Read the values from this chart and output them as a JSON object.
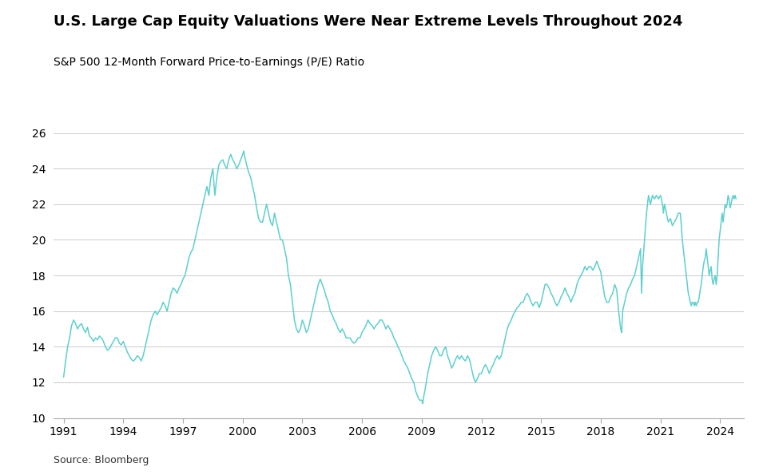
{
  "title": "U.S. Large Cap Equity Valuations Were Near Extreme Levels Throughout 2024",
  "subtitle": "S&P 500 12-Month Forward Price-to-Earnings (P/E) Ratio",
  "source": "Source: Bloomberg",
  "line_color": "#5ECFCF",
  "background_color": "#ffffff",
  "ylim": [
    10,
    26
  ],
  "yticks": [
    10,
    12,
    14,
    16,
    18,
    20,
    22,
    24,
    26
  ],
  "xtick_years": [
    1991,
    1994,
    1997,
    2000,
    2003,
    2006,
    2009,
    2012,
    2015,
    2018,
    2021,
    2024
  ],
  "data": [
    [
      1991.0,
      12.3
    ],
    [
      1991.1,
      13.2
    ],
    [
      1991.2,
      14.0
    ],
    [
      1991.3,
      14.5
    ],
    [
      1991.4,
      15.2
    ],
    [
      1991.5,
      15.5
    ],
    [
      1991.6,
      15.3
    ],
    [
      1991.7,
      15.0
    ],
    [
      1991.8,
      15.2
    ],
    [
      1991.9,
      15.3
    ],
    [
      1992.0,
      15.0
    ],
    [
      1992.1,
      14.8
    ],
    [
      1992.2,
      15.1
    ],
    [
      1992.3,
      14.6
    ],
    [
      1992.4,
      14.5
    ],
    [
      1992.5,
      14.3
    ],
    [
      1992.6,
      14.5
    ],
    [
      1992.7,
      14.4
    ],
    [
      1992.8,
      14.6
    ],
    [
      1992.9,
      14.5
    ],
    [
      1993.0,
      14.3
    ],
    [
      1993.1,
      14.0
    ],
    [
      1993.2,
      13.8
    ],
    [
      1993.3,
      13.9
    ],
    [
      1993.4,
      14.1
    ],
    [
      1993.5,
      14.3
    ],
    [
      1993.6,
      14.5
    ],
    [
      1993.7,
      14.5
    ],
    [
      1993.8,
      14.2
    ],
    [
      1993.9,
      14.1
    ],
    [
      1994.0,
      14.3
    ],
    [
      1994.1,
      14.0
    ],
    [
      1994.2,
      13.7
    ],
    [
      1994.3,
      13.5
    ],
    [
      1994.4,
      13.3
    ],
    [
      1994.5,
      13.2
    ],
    [
      1994.6,
      13.3
    ],
    [
      1994.7,
      13.5
    ],
    [
      1994.8,
      13.4
    ],
    [
      1994.9,
      13.2
    ],
    [
      1995.0,
      13.5
    ],
    [
      1995.1,
      14.0
    ],
    [
      1995.2,
      14.5
    ],
    [
      1995.3,
      15.0
    ],
    [
      1995.4,
      15.5
    ],
    [
      1995.5,
      15.8
    ],
    [
      1995.6,
      16.0
    ],
    [
      1995.7,
      15.8
    ],
    [
      1995.8,
      16.0
    ],
    [
      1995.9,
      16.2
    ],
    [
      1996.0,
      16.5
    ],
    [
      1996.1,
      16.3
    ],
    [
      1996.2,
      16.0
    ],
    [
      1996.3,
      16.5
    ],
    [
      1996.4,
      17.0
    ],
    [
      1996.5,
      17.3
    ],
    [
      1996.6,
      17.2
    ],
    [
      1996.7,
      17.0
    ],
    [
      1996.8,
      17.3
    ],
    [
      1996.9,
      17.5
    ],
    [
      1997.0,
      17.8
    ],
    [
      1997.1,
      18.0
    ],
    [
      1997.2,
      18.5
    ],
    [
      1997.3,
      19.0
    ],
    [
      1997.4,
      19.3
    ],
    [
      1997.5,
      19.5
    ],
    [
      1997.6,
      20.0
    ],
    [
      1997.7,
      20.5
    ],
    [
      1997.8,
      21.0
    ],
    [
      1997.9,
      21.5
    ],
    [
      1998.0,
      22.0
    ],
    [
      1998.1,
      22.5
    ],
    [
      1998.2,
      23.0
    ],
    [
      1998.3,
      22.5
    ],
    [
      1998.4,
      23.5
    ],
    [
      1998.5,
      24.0
    ],
    [
      1998.6,
      22.5
    ],
    [
      1998.7,
      23.5
    ],
    [
      1998.8,
      24.2
    ],
    [
      1998.9,
      24.4
    ],
    [
      1999.0,
      24.5
    ],
    [
      1999.1,
      24.2
    ],
    [
      1999.2,
      24.0
    ],
    [
      1999.3,
      24.5
    ],
    [
      1999.4,
      24.8
    ],
    [
      1999.5,
      24.5
    ],
    [
      1999.6,
      24.3
    ],
    [
      1999.7,
      24.0
    ],
    [
      1999.8,
      24.2
    ],
    [
      1999.9,
      24.5
    ],
    [
      2000.0,
      24.8
    ],
    [
      2000.05,
      25.0
    ],
    [
      2000.1,
      24.7
    ],
    [
      2000.2,
      24.2
    ],
    [
      2000.3,
      23.8
    ],
    [
      2000.4,
      23.5
    ],
    [
      2000.5,
      23.0
    ],
    [
      2000.6,
      22.5
    ],
    [
      2000.7,
      21.8
    ],
    [
      2000.8,
      21.2
    ],
    [
      2000.9,
      21.0
    ],
    [
      2001.0,
      21.0
    ],
    [
      2001.1,
      21.5
    ],
    [
      2001.2,
      22.0
    ],
    [
      2001.3,
      21.5
    ],
    [
      2001.4,
      21.0
    ],
    [
      2001.5,
      20.8
    ],
    [
      2001.6,
      21.5
    ],
    [
      2001.7,
      21.0
    ],
    [
      2001.8,
      20.5
    ],
    [
      2001.9,
      20.0
    ],
    [
      2002.0,
      20.0
    ],
    [
      2002.1,
      19.5
    ],
    [
      2002.2,
      19.0
    ],
    [
      2002.3,
      18.0
    ],
    [
      2002.4,
      17.5
    ],
    [
      2002.5,
      16.5
    ],
    [
      2002.6,
      15.5
    ],
    [
      2002.7,
      15.0
    ],
    [
      2002.8,
      14.8
    ],
    [
      2002.9,
      15.0
    ],
    [
      2003.0,
      15.5
    ],
    [
      2003.1,
      15.2
    ],
    [
      2003.2,
      14.8
    ],
    [
      2003.3,
      15.0
    ],
    [
      2003.4,
      15.5
    ],
    [
      2003.5,
      16.0
    ],
    [
      2003.6,
      16.5
    ],
    [
      2003.7,
      17.0
    ],
    [
      2003.8,
      17.5
    ],
    [
      2003.9,
      17.8
    ],
    [
      2004.0,
      17.5
    ],
    [
      2004.1,
      17.2
    ],
    [
      2004.2,
      16.8
    ],
    [
      2004.3,
      16.5
    ],
    [
      2004.4,
      16.0
    ],
    [
      2004.5,
      15.8
    ],
    [
      2004.6,
      15.5
    ],
    [
      2004.7,
      15.3
    ],
    [
      2004.8,
      15.0
    ],
    [
      2004.9,
      14.8
    ],
    [
      2005.0,
      15.0
    ],
    [
      2005.1,
      14.8
    ],
    [
      2005.2,
      14.5
    ],
    [
      2005.3,
      14.5
    ],
    [
      2005.4,
      14.5
    ],
    [
      2005.5,
      14.3
    ],
    [
      2005.6,
      14.2
    ],
    [
      2005.7,
      14.3
    ],
    [
      2005.8,
      14.5
    ],
    [
      2005.9,
      14.5
    ],
    [
      2006.0,
      14.8
    ],
    [
      2006.1,
      15.0
    ],
    [
      2006.2,
      15.2
    ],
    [
      2006.3,
      15.5
    ],
    [
      2006.4,
      15.3
    ],
    [
      2006.5,
      15.2
    ],
    [
      2006.6,
      15.0
    ],
    [
      2006.7,
      15.2
    ],
    [
      2006.8,
      15.3
    ],
    [
      2006.9,
      15.5
    ],
    [
      2007.0,
      15.5
    ],
    [
      2007.1,
      15.3
    ],
    [
      2007.2,
      15.0
    ],
    [
      2007.3,
      15.2
    ],
    [
      2007.4,
      15.0
    ],
    [
      2007.5,
      14.8
    ],
    [
      2007.6,
      14.5
    ],
    [
      2007.7,
      14.3
    ],
    [
      2007.8,
      14.0
    ],
    [
      2007.9,
      13.8
    ],
    [
      2008.0,
      13.5
    ],
    [
      2008.1,
      13.2
    ],
    [
      2008.2,
      13.0
    ],
    [
      2008.3,
      12.8
    ],
    [
      2008.4,
      12.5
    ],
    [
      2008.5,
      12.2
    ],
    [
      2008.6,
      12.0
    ],
    [
      2008.7,
      11.5
    ],
    [
      2008.8,
      11.2
    ],
    [
      2008.9,
      11.0
    ],
    [
      2009.0,
      11.0
    ],
    [
      2009.05,
      10.8
    ],
    [
      2009.1,
      11.2
    ],
    [
      2009.2,
      11.8
    ],
    [
      2009.3,
      12.5
    ],
    [
      2009.4,
      13.0
    ],
    [
      2009.5,
      13.5
    ],
    [
      2009.6,
      13.8
    ],
    [
      2009.7,
      14.0
    ],
    [
      2009.8,
      13.8
    ],
    [
      2009.9,
      13.5
    ],
    [
      2010.0,
      13.5
    ],
    [
      2010.1,
      13.8
    ],
    [
      2010.2,
      14.0
    ],
    [
      2010.3,
      13.5
    ],
    [
      2010.4,
      13.2
    ],
    [
      2010.5,
      12.8
    ],
    [
      2010.6,
      13.0
    ],
    [
      2010.7,
      13.3
    ],
    [
      2010.8,
      13.5
    ],
    [
      2010.9,
      13.3
    ],
    [
      2011.0,
      13.5
    ],
    [
      2011.1,
      13.3
    ],
    [
      2011.2,
      13.2
    ],
    [
      2011.3,
      13.5
    ],
    [
      2011.4,
      13.3
    ],
    [
      2011.5,
      12.8
    ],
    [
      2011.6,
      12.3
    ],
    [
      2011.7,
      12.0
    ],
    [
      2011.8,
      12.2
    ],
    [
      2011.9,
      12.5
    ],
    [
      2012.0,
      12.5
    ],
    [
      2012.1,
      12.8
    ],
    [
      2012.2,
      13.0
    ],
    [
      2012.3,
      12.8
    ],
    [
      2012.4,
      12.5
    ],
    [
      2012.5,
      12.8
    ],
    [
      2012.6,
      13.0
    ],
    [
      2012.7,
      13.3
    ],
    [
      2012.8,
      13.5
    ],
    [
      2012.9,
      13.3
    ],
    [
      2013.0,
      13.5
    ],
    [
      2013.1,
      14.0
    ],
    [
      2013.2,
      14.5
    ],
    [
      2013.3,
      15.0
    ],
    [
      2013.4,
      15.3
    ],
    [
      2013.5,
      15.5
    ],
    [
      2013.6,
      15.8
    ],
    [
      2013.7,
      16.0
    ],
    [
      2013.8,
      16.2
    ],
    [
      2013.9,
      16.3
    ],
    [
      2014.0,
      16.5
    ],
    [
      2014.1,
      16.5
    ],
    [
      2014.2,
      16.8
    ],
    [
      2014.3,
      17.0
    ],
    [
      2014.4,
      16.8
    ],
    [
      2014.5,
      16.5
    ],
    [
      2014.6,
      16.3
    ],
    [
      2014.7,
      16.5
    ],
    [
      2014.8,
      16.5
    ],
    [
      2014.9,
      16.2
    ],
    [
      2015.0,
      16.5
    ],
    [
      2015.1,
      17.0
    ],
    [
      2015.2,
      17.5
    ],
    [
      2015.3,
      17.5
    ],
    [
      2015.4,
      17.3
    ],
    [
      2015.5,
      17.0
    ],
    [
      2015.6,
      16.8
    ],
    [
      2015.7,
      16.5
    ],
    [
      2015.8,
      16.3
    ],
    [
      2015.9,
      16.5
    ],
    [
      2016.0,
      16.8
    ],
    [
      2016.1,
      17.0
    ],
    [
      2016.2,
      17.3
    ],
    [
      2016.3,
      17.0
    ],
    [
      2016.4,
      16.8
    ],
    [
      2016.5,
      16.5
    ],
    [
      2016.6,
      16.8
    ],
    [
      2016.7,
      17.0
    ],
    [
      2016.8,
      17.5
    ],
    [
      2016.9,
      17.8
    ],
    [
      2017.0,
      18.0
    ],
    [
      2017.1,
      18.2
    ],
    [
      2017.2,
      18.5
    ],
    [
      2017.3,
      18.3
    ],
    [
      2017.4,
      18.5
    ],
    [
      2017.5,
      18.5
    ],
    [
      2017.6,
      18.3
    ],
    [
      2017.7,
      18.5
    ],
    [
      2017.8,
      18.8
    ],
    [
      2017.9,
      18.5
    ],
    [
      2018.0,
      18.2
    ],
    [
      2018.1,
      17.5
    ],
    [
      2018.2,
      16.8
    ],
    [
      2018.3,
      16.5
    ],
    [
      2018.4,
      16.5
    ],
    [
      2018.5,
      16.8
    ],
    [
      2018.6,
      17.0
    ],
    [
      2018.7,
      17.5
    ],
    [
      2018.8,
      17.2
    ],
    [
      2018.9,
      16.0
    ],
    [
      2019.0,
      15.0
    ],
    [
      2019.05,
      14.8
    ],
    [
      2019.1,
      16.0
    ],
    [
      2019.2,
      16.5
    ],
    [
      2019.3,
      17.0
    ],
    [
      2019.4,
      17.3
    ],
    [
      2019.5,
      17.5
    ],
    [
      2019.6,
      17.8
    ],
    [
      2019.7,
      18.0
    ],
    [
      2019.8,
      18.5
    ],
    [
      2019.9,
      19.0
    ],
    [
      2020.0,
      19.5
    ],
    [
      2020.05,
      17.0
    ],
    [
      2020.1,
      18.5
    ],
    [
      2020.2,
      20.0
    ],
    [
      2020.3,
      21.5
    ],
    [
      2020.4,
      22.5
    ],
    [
      2020.5,
      22.0
    ],
    [
      2020.6,
      22.5
    ],
    [
      2020.7,
      22.3
    ],
    [
      2020.8,
      22.5
    ],
    [
      2020.9,
      22.3
    ],
    [
      2021.0,
      22.5
    ],
    [
      2021.05,
      22.3
    ],
    [
      2021.1,
      22.0
    ],
    [
      2021.15,
      21.5
    ],
    [
      2021.2,
      22.0
    ],
    [
      2021.25,
      21.8
    ],
    [
      2021.3,
      21.5
    ],
    [
      2021.35,
      21.2
    ],
    [
      2021.4,
      21.0
    ],
    [
      2021.5,
      21.2
    ],
    [
      2021.6,
      20.8
    ],
    [
      2021.7,
      21.0
    ],
    [
      2021.8,
      21.2
    ],
    [
      2021.9,
      21.5
    ],
    [
      2022.0,
      21.5
    ],
    [
      2022.05,
      20.8
    ],
    [
      2022.1,
      20.0
    ],
    [
      2022.15,
      19.5
    ],
    [
      2022.2,
      19.0
    ],
    [
      2022.25,
      18.5
    ],
    [
      2022.3,
      18.0
    ],
    [
      2022.35,
      17.5
    ],
    [
      2022.4,
      17.0
    ],
    [
      2022.45,
      16.8
    ],
    [
      2022.5,
      16.5
    ],
    [
      2022.55,
      16.3
    ],
    [
      2022.6,
      16.5
    ],
    [
      2022.65,
      16.5
    ],
    [
      2022.7,
      16.3
    ],
    [
      2022.75,
      16.5
    ],
    [
      2022.8,
      16.3
    ],
    [
      2022.85,
      16.5
    ],
    [
      2022.9,
      16.5
    ],
    [
      2022.95,
      16.8
    ],
    [
      2023.0,
      17.2
    ],
    [
      2023.05,
      17.5
    ],
    [
      2023.1,
      18.0
    ],
    [
      2023.15,
      18.5
    ],
    [
      2023.2,
      18.8
    ],
    [
      2023.25,
      19.0
    ],
    [
      2023.3,
      19.5
    ],
    [
      2023.35,
      19.0
    ],
    [
      2023.4,
      18.5
    ],
    [
      2023.45,
      18.0
    ],
    [
      2023.5,
      18.3
    ],
    [
      2023.55,
      18.5
    ],
    [
      2023.6,
      17.8
    ],
    [
      2023.65,
      17.5
    ],
    [
      2023.7,
      17.8
    ],
    [
      2023.75,
      18.0
    ],
    [
      2023.8,
      17.5
    ],
    [
      2023.85,
      18.0
    ],
    [
      2023.9,
      19.0
    ],
    [
      2023.95,
      20.0
    ],
    [
      2024.0,
      20.5
    ],
    [
      2024.05,
      21.0
    ],
    [
      2024.1,
      21.5
    ],
    [
      2024.15,
      21.0
    ],
    [
      2024.2,
      21.5
    ],
    [
      2024.25,
      22.0
    ],
    [
      2024.3,
      21.8
    ],
    [
      2024.35,
      22.0
    ],
    [
      2024.4,
      22.5
    ],
    [
      2024.45,
      22.3
    ],
    [
      2024.5,
      21.8
    ],
    [
      2024.55,
      22.0
    ],
    [
      2024.6,
      22.3
    ],
    [
      2024.65,
      22.5
    ],
    [
      2024.7,
      22.3
    ],
    [
      2024.75,
      22.5
    ],
    [
      2024.8,
      22.3
    ]
  ]
}
